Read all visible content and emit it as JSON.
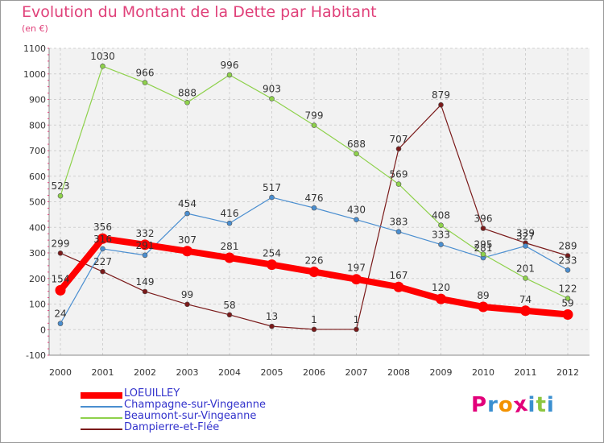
{
  "title": "Evolution du Montant de la Dette par Habitant",
  "subtitle": "(en €)",
  "logo_text": "Proxiti",
  "logo_colors": [
    "#e2007a",
    "#3a8fd0",
    "#f39200",
    "#e2007a",
    "#3a8fd0",
    "#8cc63f",
    "#3a8fd0"
  ],
  "chart_data": {
    "type": "line",
    "x": [
      "2000",
      "2001",
      "2002",
      "2003",
      "2004",
      "2005",
      "2006",
      "2007",
      "2008",
      "2009",
      "2010",
      "2011",
      "2012"
    ],
    "ylim": [
      -100,
      1100
    ],
    "yticks": [
      "-100",
      "0",
      "100",
      "200",
      "300",
      "400",
      "500",
      "600",
      "700",
      "800",
      "900",
      "1000",
      "1100"
    ],
    "grid": true,
    "legend_position": "bottom-left",
    "series": [
      {
        "name": "Dampierre-et-Flée",
        "color": "#7a1a1a",
        "values": [
          299,
          227,
          149,
          99,
          58,
          13,
          1,
          1,
          707,
          879,
          396,
          339,
          289
        ],
        "labels": [
          "299",
          "227",
          "149",
          "99",
          "58",
          "13",
          "1",
          "1",
          "707",
          "879",
          "396",
          "339",
          "289"
        ]
      },
      {
        "name": "Champagne-sur-Vingeanne",
        "color": "#4a8ed0",
        "values": [
          24,
          316,
          291,
          454,
          416,
          517,
          476,
          430,
          383,
          333,
          281,
          327,
          233
        ],
        "labels": [
          "24",
          "316",
          "291",
          "454",
          "416",
          "517",
          "476",
          "430",
          "383",
          "333",
          "281",
          "327",
          "233"
        ]
      },
      {
        "name": "Beaumont-sur-Vingeanne",
        "color": "#8ed14b",
        "values": [
          523,
          1030,
          966,
          888,
          996,
          903,
          799,
          688,
          569,
          408,
          295,
          201,
          122
        ],
        "labels": [
          "523",
          "1030",
          "966",
          "888",
          "996",
          "903",
          "799",
          "688",
          "569",
          "408",
          "295",
          "201",
          "122"
        ]
      },
      {
        "name": "LOEUILLEY",
        "color": "#ff0000",
        "values": [
          154,
          356,
          332,
          307,
          281,
          254,
          226,
          197,
          167,
          120,
          89,
          74,
          59
        ],
        "labels": [
          "154",
          "356",
          "332",
          "307",
          "281",
          "254",
          "226",
          "197",
          "167",
          "120",
          "89",
          "74",
          "59"
        ]
      }
    ],
    "legend_order": [
      "LOEUILLEY",
      "Champagne-sur-Vingeanne",
      "Beaumont-sur-Vingeanne",
      "Dampierre-et-Flée"
    ]
  }
}
